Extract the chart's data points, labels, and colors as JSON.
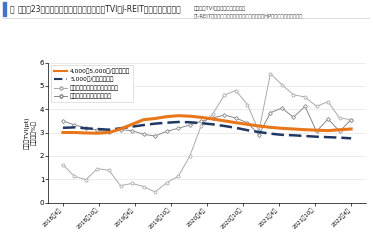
{
  "title_prefix": "図",
  "title_main": "　東京23区ハイクラス賃貸住宅の空室率TVI（J-REITの空室率の比較）",
  "ylabel1": "空室率TVI(pt)",
  "ylabel2": "空室率（%）",
  "note1": "【空室率TVI】分析：株式会社タス",
  "note2": "【J-REIT空室率】作成：株式会社タス（各社のHPより公開データより）",
  "legend": [
    "4,000～5,000円/㎡月クラス",
    "5,000円/㎡月超クラス",
    "アドバンスレジデンス投資法人",
    "大和証券リビング投資法人"
  ],
  "x_labels": [
    "2018年4月",
    "2018年10月",
    "2019年4月",
    "2019年10月",
    "2020年4月",
    "2020年10月",
    "2021年4月",
    "2021年10月",
    "2022年4月"
  ],
  "ylim": [
    0,
    6
  ],
  "yticks": [
    0,
    1,
    2,
    3,
    4,
    5,
    6
  ],
  "line1_color": "#E8761A",
  "line2_color": "#1F3864",
  "line3_color": "#AAAAAA",
  "line4_color": "#888888",
  "bg_color": "#FFFFFF",
  "title_bar_color": "#4472C4",
  "line1": [
    3.0,
    3.0,
    2.98,
    2.97,
    3.0,
    3.15,
    3.35,
    3.55,
    3.6,
    3.68,
    3.72,
    3.7,
    3.65,
    3.58,
    3.5,
    3.42,
    3.35,
    3.28,
    3.22,
    3.18,
    3.15,
    3.12,
    3.1,
    3.08,
    3.12,
    3.15
  ],
  "line2": [
    3.2,
    3.22,
    3.18,
    3.15,
    3.12,
    3.18,
    3.25,
    3.32,
    3.38,
    3.42,
    3.45,
    3.44,
    3.4,
    3.35,
    3.28,
    3.2,
    3.1,
    3.02,
    2.95,
    2.9,
    2.88,
    2.85,
    2.82,
    2.8,
    2.78,
    2.75
  ],
  "line3": [
    1.62,
    1.12,
    0.98,
    1.45,
    1.38,
    0.72,
    0.82,
    0.68,
    0.45,
    0.85,
    1.12,
    1.98,
    3.3,
    3.8,
    4.6,
    4.8,
    4.2,
    3.05,
    5.52,
    5.05,
    4.62,
    4.52,
    4.12,
    4.32,
    3.62,
    3.55
  ],
  "line4": [
    3.5,
    3.32,
    3.2,
    3.1,
    3.02,
    3.12,
    3.08,
    2.92,
    2.85,
    3.05,
    3.18,
    3.32,
    3.48,
    3.62,
    3.75,
    3.62,
    3.42,
    2.9,
    3.85,
    4.05,
    3.65,
    4.12,
    3.05,
    3.58,
    3.05,
    3.55
  ]
}
